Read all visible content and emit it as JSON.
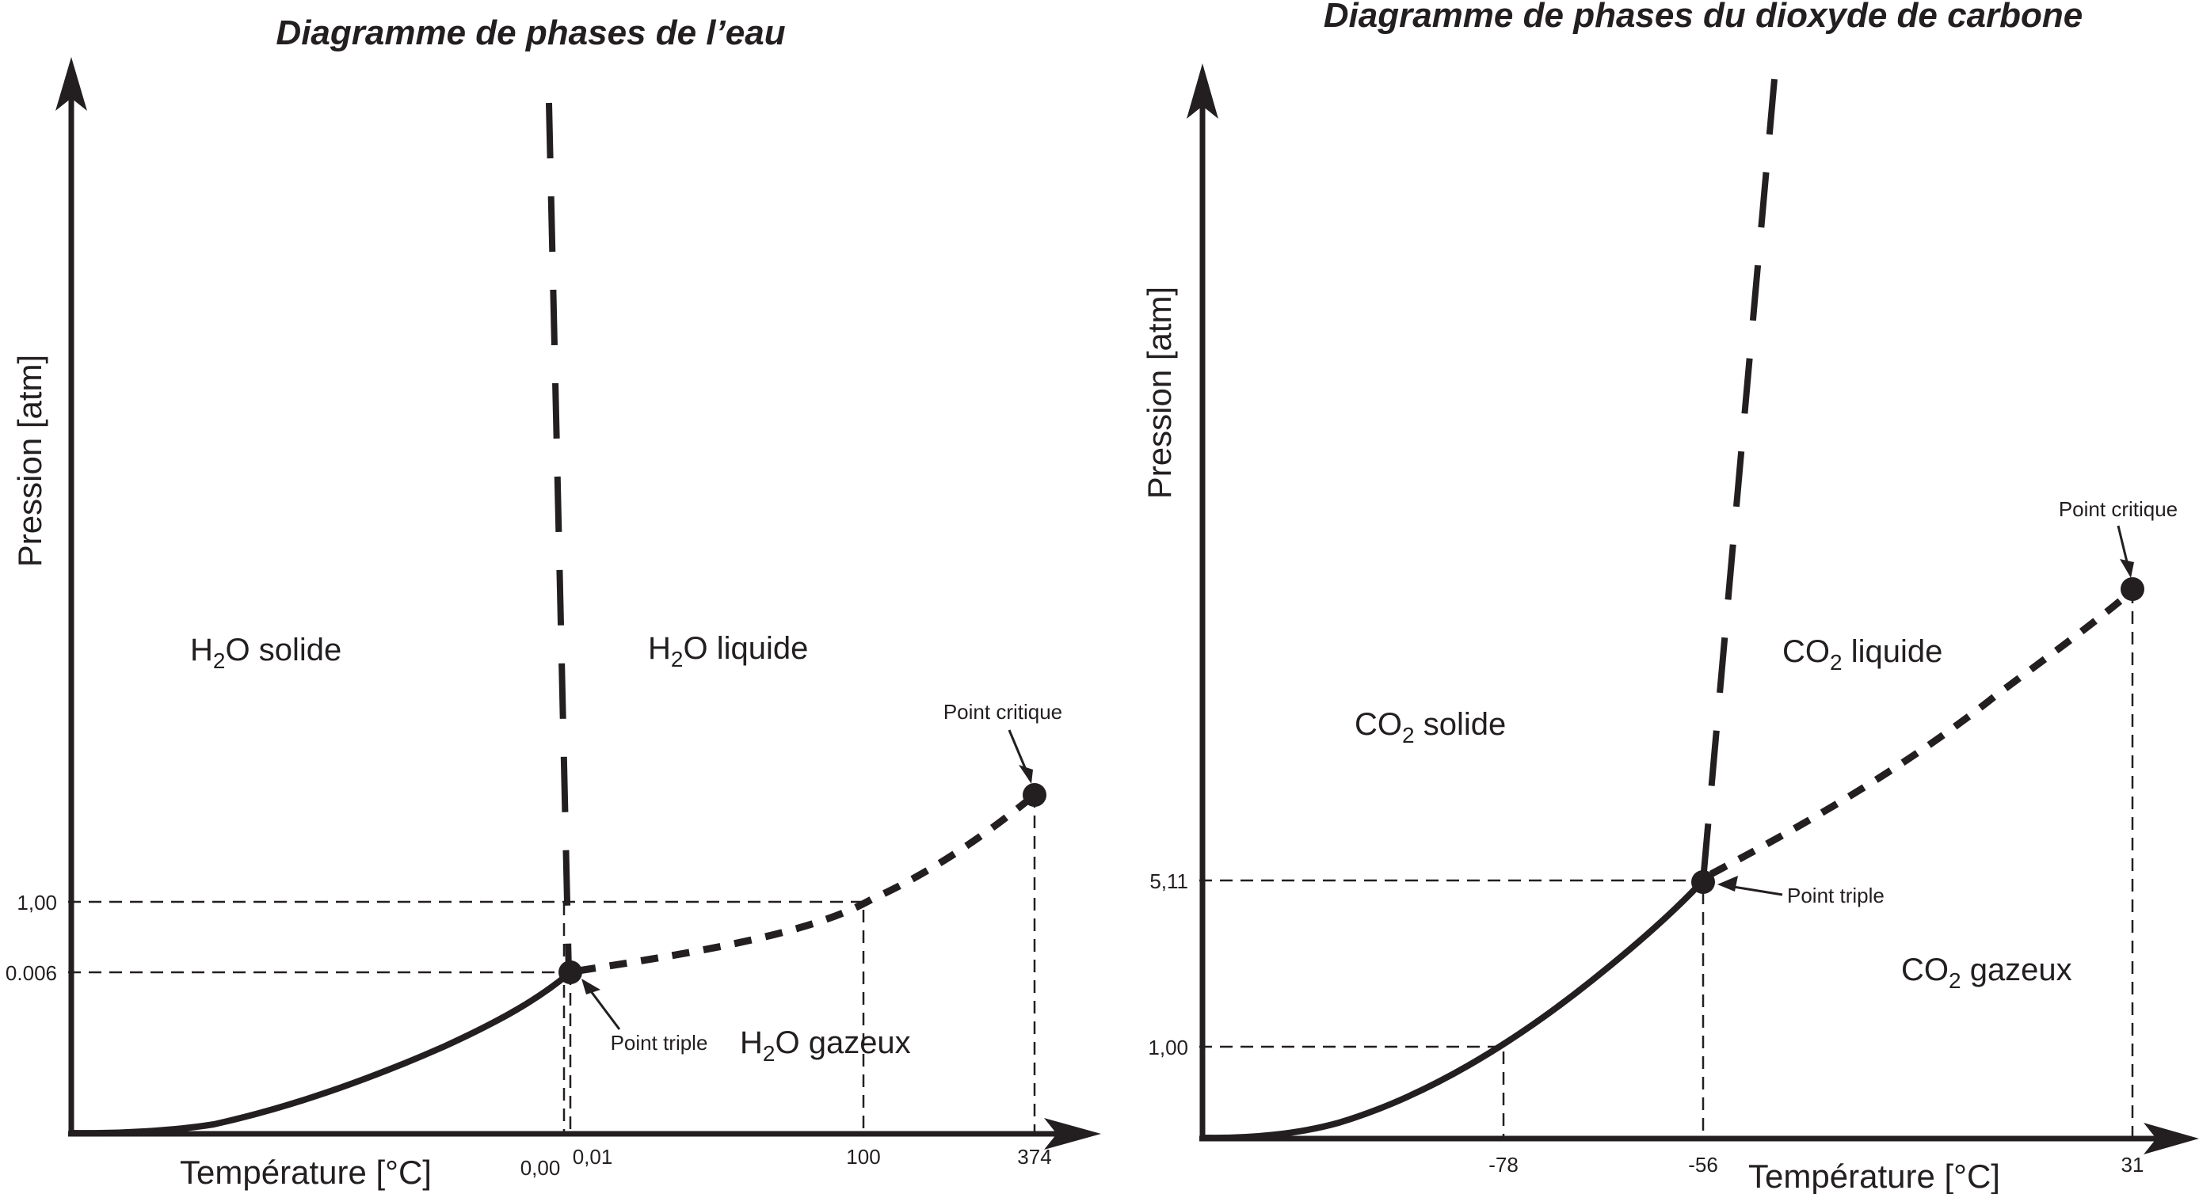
{
  "water": {
    "title": "Diagramme de phases de l’eau",
    "ylabel": "Pression [atm]",
    "xlabel": "Température [°C]",
    "solid": {
      "formula": "H",
      "sub": "2",
      "rest": "O solide"
    },
    "liquid": {
      "formula": "H",
      "sub": "2",
      "rest": "O liquide"
    },
    "gas": {
      "formula": "H",
      "sub": "2",
      "rest": "O gazeux"
    },
    "triple_point": "Point triple",
    "critical_point": "Point critique",
    "y_ticks": [
      "1,00",
      "0.006"
    ],
    "x_ticks": [
      "0,00",
      "0,01",
      "100",
      "374"
    ]
  },
  "co2": {
    "title": "Diagramme de phases du dioxyde de carbone",
    "ylabel": "Pression [atm]",
    "xlabel": "Température [°C]",
    "solid": {
      "formula": "CO",
      "sub": "2",
      "rest": " solide"
    },
    "liquid": {
      "formula": "CO",
      "sub": "2",
      "rest": " liquide"
    },
    "gas": {
      "formula": "CO",
      "sub": "2",
      "rest": " gazeux"
    },
    "triple_point": "Point triple",
    "critical_point": "Point critique",
    "y_ticks": [
      "5,11",
      "1,00"
    ],
    "x_ticks": [
      "-78",
      "-56",
      "31"
    ]
  }
}
